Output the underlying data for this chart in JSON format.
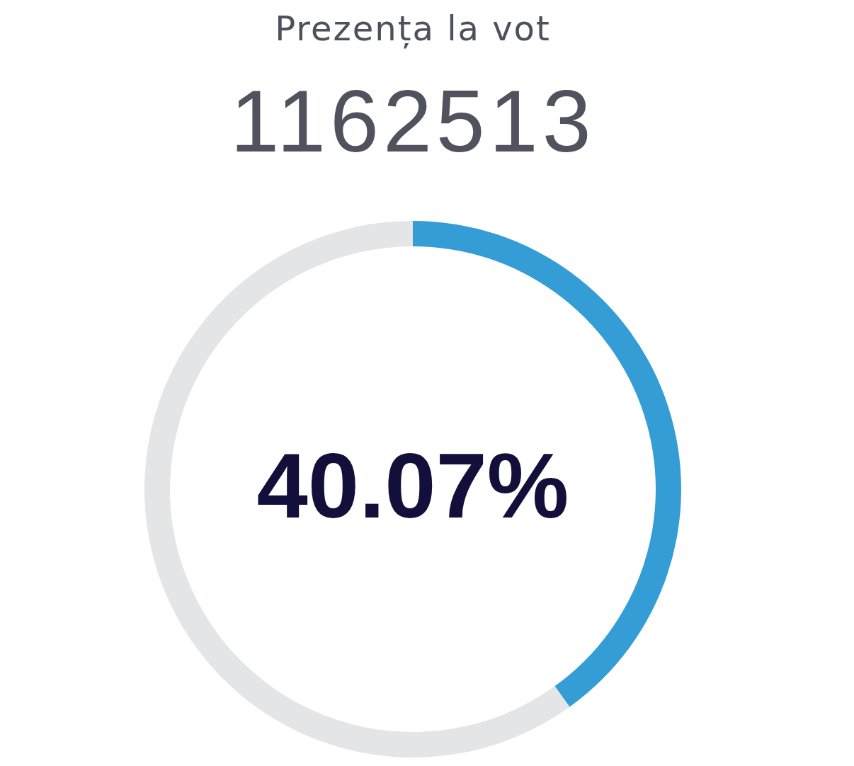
{
  "chart_data": {
    "type": "donut",
    "title": "Prezența la vot",
    "subtitle": "1162513",
    "categories": [
      null,
      null
    ],
    "values": [
      40.07,
      59.93
    ],
    "colors": [
      "#349dd6",
      "#e4e5e7"
    ],
    "value_labels": [
      "40.07%",
      null
    ]
  }
}
